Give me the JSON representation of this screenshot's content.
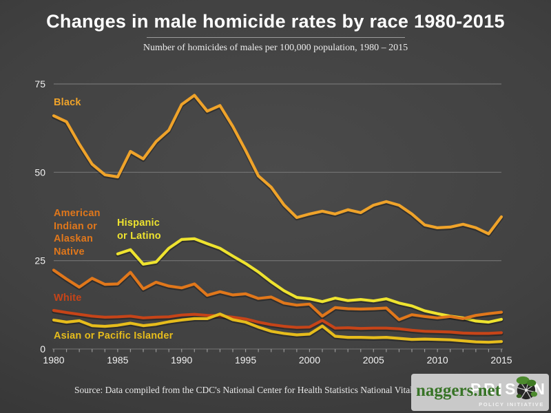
{
  "title": "Changes in male homicide rates by race 1980-2015",
  "subtitle": "Number of homicides of males per 100,000 population, 1980 – 2015",
  "source": "Source: Data compiled from the CDC's National Center for Health Statistics National Vital Statistics reports",
  "watermark": {
    "text": "naggers.net",
    "brand": "PRISON",
    "brand_sub": "POLICY INITIATIVE"
  },
  "colors": {
    "background_center": "#4b4b4b",
    "background_edge": "#2e2e2e",
    "title_text": "#ffffff",
    "subtitle_text": "#ececec",
    "separator": "#9c9c9c",
    "gridline": "#757575",
    "axis_line": "#999999",
    "axis_text": "#f2f2f2",
    "source_text": "#e8e8e8",
    "watermark_bg": "#c9c9c9",
    "watermark_text": "#387427",
    "watermark_brand": "#ffffff",
    "logo_green": "#4c8a2e",
    "logo_dark": "#262626"
  },
  "chart_data": {
    "type": "line",
    "xlim": [
      1980,
      2015
    ],
    "ylim": [
      0,
      75
    ],
    "x_ticks": [
      1980,
      1985,
      1990,
      1995,
      2000,
      2005,
      2010,
      2015
    ],
    "y_ticks": [
      0,
      25,
      50,
      75
    ],
    "grid": true,
    "legend_position": "inline-labels",
    "series": [
      {
        "name": "Black",
        "label": "Black",
        "color": "#efa32a",
        "start_year": 1980,
        "values": [
          66.0,
          64.3,
          58.0,
          52.3,
          49.3,
          48.7,
          55.9,
          53.8,
          58.7,
          61.9,
          69.2,
          71.8,
          67.3,
          68.9,
          63.0,
          56.2,
          49.0,
          45.8,
          40.8,
          37.2,
          38.2,
          39.0,
          38.2,
          39.4,
          38.6,
          40.7,
          41.7,
          40.7,
          38.2,
          35.1,
          34.3,
          34.5,
          35.3,
          34.3,
          32.6,
          37.4
        ]
      },
      {
        "name": "Hispanic or Latino",
        "label": "Hispanic\nor Latino",
        "color": "#eee32f",
        "start_year": 1985,
        "values": [
          26.9,
          28.1,
          24.0,
          24.6,
          28.5,
          31.0,
          31.2,
          29.8,
          28.5,
          26.3,
          24.2,
          21.8,
          19.0,
          16.5,
          14.6,
          14.2,
          13.4,
          14.4,
          13.7,
          14.0,
          13.6,
          14.2,
          13.0,
          12.2,
          10.8,
          10.0,
          9.3,
          8.8,
          7.9,
          7.6,
          8.4
        ]
      },
      {
        "name": "American Indian or Alaskan Native",
        "label": "American\nIndian or\nAlaskan\nNative",
        "color": "#e0771b",
        "start_year": 1980,
        "values": [
          22.3,
          19.8,
          17.5,
          20.0,
          18.3,
          18.4,
          21.7,
          17.0,
          18.9,
          17.8,
          17.3,
          18.4,
          15.2,
          16.2,
          15.3,
          15.6,
          14.3,
          14.7,
          13.0,
          12.4,
          12.7,
          9.3,
          11.7,
          11.4,
          11.3,
          11.4,
          11.6,
          8.3,
          9.7,
          9.2,
          8.8,
          9.2,
          8.6,
          9.5,
          10.0,
          10.4
        ]
      },
      {
        "name": "White",
        "label": "White",
        "color": "#c64418",
        "start_year": 1980,
        "values": [
          10.9,
          10.3,
          9.8,
          9.3,
          9.0,
          9.1,
          9.3,
          8.8,
          9.0,
          9.1,
          9.6,
          9.8,
          9.5,
          9.4,
          9.0,
          8.5,
          7.6,
          6.9,
          6.4,
          6.1,
          6.2,
          8.1,
          5.9,
          6.0,
          5.8,
          5.9,
          5.9,
          5.7,
          5.3,
          5.0,
          4.9,
          4.8,
          4.5,
          4.4,
          4.4,
          4.6
        ]
      },
      {
        "name": "Asian or Pacific Islander",
        "label": "Asian or Pacific Islander",
        "color": "#e6bc1c",
        "start_year": 1980,
        "values": [
          8.2,
          7.6,
          8.0,
          6.6,
          6.4,
          6.7,
          7.3,
          6.6,
          7.0,
          7.7,
          8.2,
          8.6,
          8.6,
          9.9,
          8.3,
          7.6,
          6.2,
          5.0,
          4.4,
          4.0,
          4.2,
          6.5,
          3.6,
          3.3,
          3.3,
          3.2,
          3.3,
          3.0,
          2.7,
          2.8,
          2.7,
          2.6,
          2.3,
          2.0,
          1.9,
          2.1
        ]
      }
    ]
  }
}
